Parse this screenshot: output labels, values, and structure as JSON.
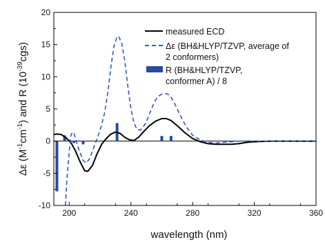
{
  "chart_data": {
    "type": "line",
    "xlabel": "wavelength (nm)",
    "ylabel": {
      "prefix": "Δε (M",
      "sup1": "-1",
      "mid1": "cm",
      "sup2": "-1",
      "mid2": ") and R (10",
      "sup3": "-39",
      "suffix": "cgs)"
    },
    "xlim": [
      190,
      360
    ],
    "ylim": [
      -10,
      20
    ],
    "xticks": [
      200,
      240,
      280,
      320,
      360
    ],
    "yticks": [
      -10,
      -5,
      0,
      5,
      10,
      15,
      20
    ],
    "legend_position": "top-right",
    "legend": [
      {
        "lines": [
          "measured ECD"
        ],
        "style": "solid-line"
      },
      {
        "lines": [
          "Δε (BH&HLYP/TZVP, average of",
          "2 conformers)"
        ],
        "style": "dashed-line"
      },
      {
        "lines": [
          "R (BH&HLYP/TZVP,",
          "conformer A) / 8"
        ],
        "style": "bar"
      }
    ],
    "colors": {
      "measured": "#000000",
      "calculated": "#3355bb",
      "bars": "#2a4aa0"
    },
    "series": [
      {
        "name": "measured ECD",
        "style": "solid",
        "x": [
          190,
          192,
          195,
          198,
          201,
          204,
          207,
          210,
          212,
          215,
          218,
          221,
          224,
          227,
          230,
          233,
          236,
          239,
          242,
          245,
          248,
          252,
          256,
          260,
          263,
          266,
          270,
          275,
          280,
          285,
          290,
          295,
          300,
          305,
          310,
          315,
          320,
          330,
          340,
          350,
          360
        ],
        "y": [
          1.0,
          1.1,
          1.0,
          0.5,
          -0.2,
          -1.5,
          -3.2,
          -4.6,
          -4.7,
          -3.8,
          -2.0,
          -0.5,
          0.4,
          1.1,
          1.4,
          1.2,
          0.6,
          0.2,
          0.1,
          0.6,
          1.4,
          2.4,
          3.1,
          3.5,
          3.5,
          3.2,
          2.4,
          1.3,
          0.4,
          -0.1,
          -0.4,
          -0.5,
          -0.5,
          -0.5,
          -0.4,
          -0.2,
          -0.1,
          0.0,
          0.0,
          0.0,
          0.0
        ]
      },
      {
        "name": "Δε (BH&HLYP/TZVP, average of 2 conformers)",
        "style": "dashed",
        "x": [
          197.5,
          198.5,
          200,
          201,
          202,
          203,
          204,
          205,
          207,
          209,
          211,
          213,
          215,
          217,
          219,
          221,
          223,
          225,
          227,
          229,
          231,
          232,
          234,
          236,
          238,
          240,
          242,
          244,
          246,
          248,
          250,
          252,
          254,
          256,
          258,
          260,
          262,
          264,
          266,
          268,
          270,
          273,
          276,
          280,
          285,
          290,
          295,
          300,
          305,
          310,
          315,
          320,
          330,
          340,
          350,
          360
        ],
        "y": [
          -10,
          -6,
          -1.5,
          0.8,
          1.4,
          1.2,
          0.5,
          -0.4,
          -1.8,
          -3.0,
          -3.4,
          -2.8,
          -1.6,
          -0.3,
          1.0,
          2.5,
          4.5,
          7.5,
          11.5,
          14.8,
          16.2,
          16.3,
          15.2,
          12.5,
          8.5,
          5.0,
          2.8,
          1.8,
          1.7,
          2.2,
          3.0,
          4.2,
          5.4,
          6.4,
          7.0,
          7.3,
          7.4,
          7.3,
          6.8,
          6.0,
          5.0,
          3.5,
          2.2,
          0.9,
          0.2,
          -0.2,
          -0.3,
          -0.2,
          -0.1,
          0.0,
          0.0,
          0.0,
          0.0,
          0.0,
          0.0,
          0.0
        ]
      }
    ],
    "bars": {
      "name": "R (BH&HLYP/TZVP, conformer A) / 8",
      "x": [
        192,
        197,
        203,
        209,
        231,
        260,
        266
      ],
      "values": [
        -7.8,
        0.9,
        -0.3,
        -0.5,
        2.8,
        0.8,
        0.8
      ]
    }
  }
}
